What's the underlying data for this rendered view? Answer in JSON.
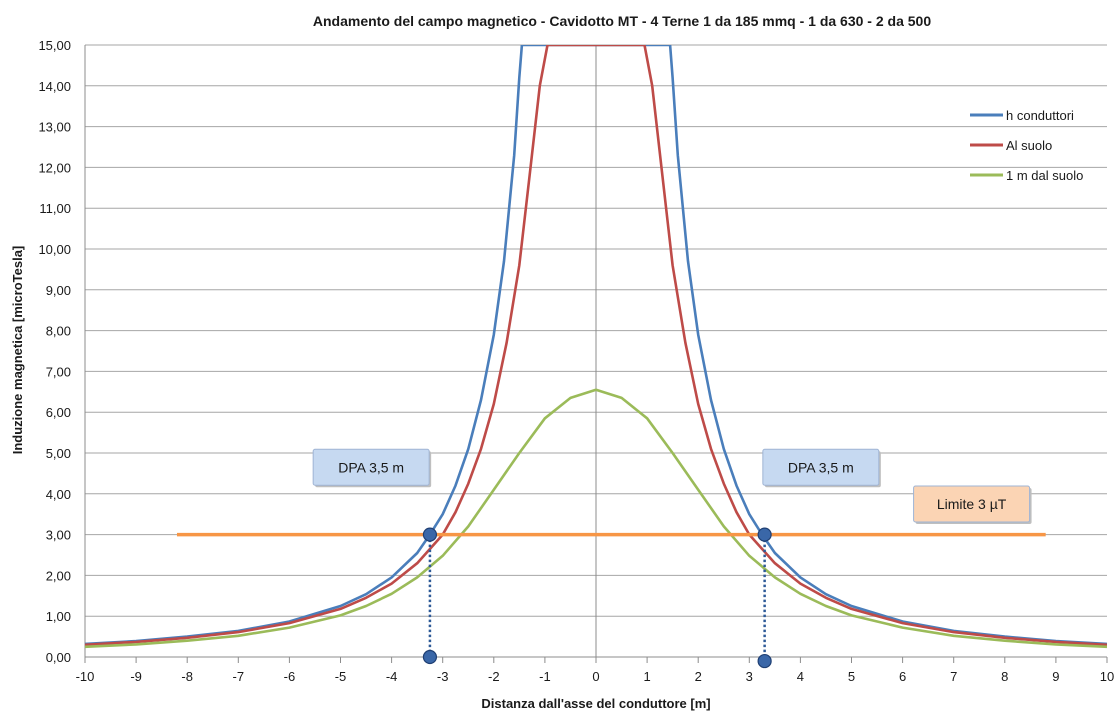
{
  "chart_data": {
    "type": "line",
    "title": "Andamento del campo magnetico  - Cavidotto MT - 4 Terne  1 da 185 mmq - 1 da 630 - 2 da 500",
    "xlabel": "Distanza dall'asse del conduttore [m]",
    "ylabel": "Induzione magnetica [microTesla]",
    "xlim": [
      -10,
      10
    ],
    "ylim": [
      0,
      15
    ],
    "x_ticks": [
      "-10",
      "-9",
      "-8",
      "-7",
      "-6",
      "-5",
      "-4",
      "-3",
      "-2",
      "-1",
      "0",
      "1",
      "2",
      "3",
      "4",
      "5",
      "6",
      "7",
      "8",
      "9",
      "10"
    ],
    "y_ticks": [
      "0,00",
      "1,00",
      "2,00",
      "3,00",
      "4,00",
      "5,00",
      "6,00",
      "7,00",
      "8,00",
      "9,00",
      "10,00",
      "11,00",
      "12,00",
      "13,00",
      "14,00",
      "15,00"
    ],
    "grid": "horizontal",
    "legend_position": "top-right",
    "series": [
      {
        "name": "h conduttori",
        "color": "#4a7ebb",
        "x": [
          -10,
          -9,
          -8,
          -7,
          -6,
          -5,
          -4.5,
          -4,
          -3.5,
          -3.25,
          -3,
          -2.75,
          -2.5,
          -2.25,
          -2,
          -1.8,
          -1.6,
          -1.5,
          -1.45,
          1.45,
          1.5,
          1.6,
          1.8,
          2,
          2.25,
          2.5,
          2.75,
          3,
          3.25,
          3.5,
          4,
          4.5,
          5,
          6,
          7,
          8,
          9,
          10
        ],
        "values": [
          0.32,
          0.39,
          0.5,
          0.64,
          0.87,
          1.25,
          1.54,
          1.95,
          2.55,
          3.0,
          3.5,
          4.2,
          5.1,
          6.3,
          7.9,
          9.7,
          12.3,
          14.2,
          15.0,
          15.0,
          14.2,
          12.3,
          9.7,
          7.9,
          6.3,
          5.1,
          4.2,
          3.5,
          3.0,
          2.55,
          1.95,
          1.54,
          1.25,
          0.87,
          0.64,
          0.5,
          0.39,
          0.32
        ]
      },
      {
        "name": "Al suolo",
        "color": "#be4b48",
        "x": [
          -10,
          -9,
          -8,
          -7,
          -6,
          -5,
          -4.5,
          -4,
          -3.5,
          -3,
          -2.75,
          -2.5,
          -2.25,
          -2,
          -1.75,
          -1.5,
          -1.3,
          -1.1,
          -0.95,
          0.95,
          1.1,
          1.3,
          1.5,
          1.75,
          2,
          2.25,
          2.5,
          2.75,
          3,
          3.5,
          4,
          4.5,
          5,
          6,
          7,
          8,
          9,
          10
        ],
        "values": [
          0.3,
          0.37,
          0.47,
          0.61,
          0.83,
          1.18,
          1.45,
          1.8,
          2.3,
          3.0,
          3.55,
          4.25,
          5.1,
          6.2,
          7.7,
          9.6,
          11.8,
          14.0,
          15.0,
          15.0,
          14.0,
          11.8,
          9.6,
          7.7,
          6.2,
          5.1,
          4.25,
          3.55,
          3.0,
          2.3,
          1.8,
          1.45,
          1.18,
          0.83,
          0.61,
          0.47,
          0.37,
          0.3
        ]
      },
      {
        "name": "1 m dal suolo",
        "color": "#9bbb59",
        "x": [
          -10,
          -9,
          -8,
          -7,
          -6,
          -5,
          -4.5,
          -4,
          -3.5,
          -3,
          -2.5,
          -2,
          -1.5,
          -1,
          -0.5,
          0,
          0.5,
          1,
          1.5,
          2,
          2.5,
          3,
          3.5,
          4,
          4.5,
          5,
          6,
          7,
          8,
          9,
          10
        ],
        "values": [
          0.25,
          0.31,
          0.4,
          0.52,
          0.72,
          1.02,
          1.25,
          1.55,
          1.95,
          2.48,
          3.2,
          4.1,
          5.0,
          5.85,
          6.35,
          6.55,
          6.35,
          5.85,
          5.0,
          4.1,
          3.2,
          2.48,
          1.95,
          1.55,
          1.25,
          1.02,
          0.72,
          0.52,
          0.4,
          0.31,
          0.25
        ]
      }
    ],
    "limit_line": {
      "x1": -8.2,
      "x2": 8.8,
      "y": 3.0,
      "color": "#f79646"
    },
    "dpa_markers": [
      {
        "x": -3.25,
        "y_top": 3.0,
        "y_bottom": 0.0
      },
      {
        "x": 3.3,
        "y_top": 3.0,
        "y_bottom": -0.1
      }
    ],
    "annotations": [
      {
        "text": "DPA 3,5 m",
        "x": -4.4,
        "y": 4.65,
        "fill": "#c6d9f1"
      },
      {
        "text": "DPA 3,5  m",
        "x": 4.4,
        "y": 4.65,
        "fill": "#c6d9f1"
      },
      {
        "text": "Limite 3 µT",
        "x": 7.35,
        "y": 3.75,
        "fill": "#fbd4b4"
      }
    ]
  }
}
